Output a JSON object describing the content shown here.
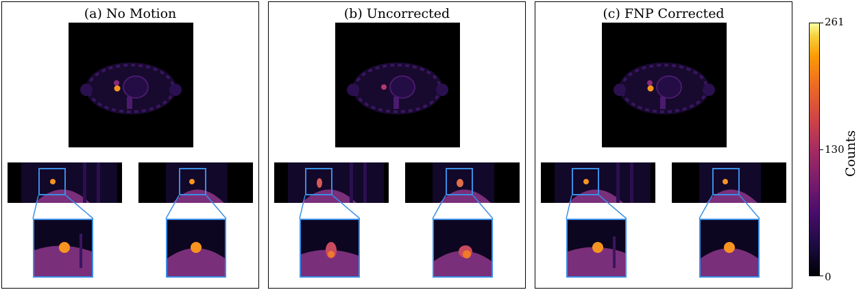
{
  "panels": [
    {
      "title": "(a) No Motion"
    },
    {
      "title": "(b) Uncorrected"
    },
    {
      "title": "(c) FNP Corrected"
    }
  ],
  "colorbar": {
    "label": "Counts",
    "ticks": [
      "261",
      "130",
      "0"
    ],
    "colormap": "inferno",
    "min": 0,
    "max": 261
  },
  "colors": {
    "roi_box": "#3a8ee6",
    "background": "#000000",
    "lesion": "#f79420",
    "tissue": "#7a2f7a"
  }
}
